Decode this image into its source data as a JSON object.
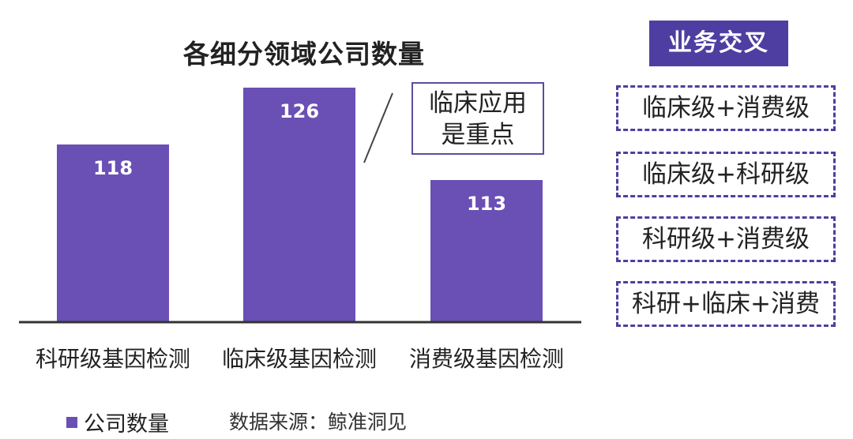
{
  "chart_data": {
    "type": "bar",
    "title": "各细分领域公司数量",
    "categories": [
      "科研级基因检测",
      "临床级基因检测",
      "消费级基因检测"
    ],
    "series": [
      {
        "name": "公司数量",
        "values": [
          118,
          126,
          113
        ],
        "color": "#6a4fb5"
      }
    ],
    "data_labels": [
      "118",
      "126",
      "113"
    ],
    "ylim": [
      93,
      133
    ],
    "grid": false,
    "legend": "bottom-left"
  },
  "annotation": {
    "lines": [
      "临床应用",
      "是重点"
    ]
  },
  "cross_panel": {
    "title": "业务交叉",
    "items": [
      "临床级+消费级",
      "临床级+科研级",
      "科研级+消费级",
      "科研+临床+消费"
    ],
    "accent": "#4f3ea1"
  },
  "source": "数据来源：鲸准洞见"
}
